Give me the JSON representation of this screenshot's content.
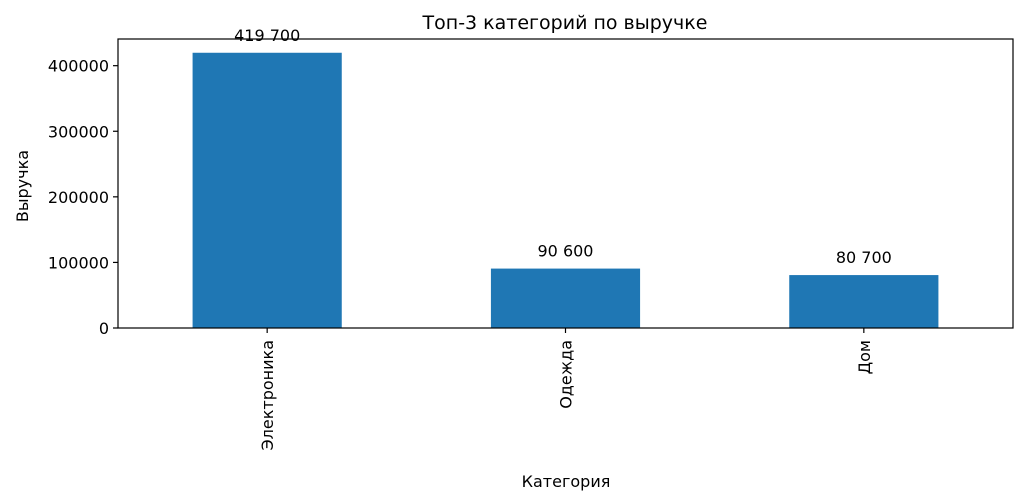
{
  "chart_data": {
    "type": "bar",
    "title": "Топ-3 категорий по выручке",
    "xlabel": "Категория",
    "ylabel": "Выручка",
    "categories": [
      "Электроника",
      "Одежда",
      "Дом"
    ],
    "values": [
      419700,
      90600,
      80700
    ],
    "data_labels": [
      "419 700",
      "90 600",
      "80 700"
    ],
    "ylim": [
      0,
      440685
    ],
    "yticks": [
      0,
      100000,
      200000,
      300000,
      400000
    ],
    "ytick_labels": [
      "0",
      "100000",
      "200000",
      "300000",
      "400000"
    ],
    "x_tick_rotation": "vertical",
    "grid": false,
    "legend": "none",
    "bar_color": "#1f77b4"
  }
}
